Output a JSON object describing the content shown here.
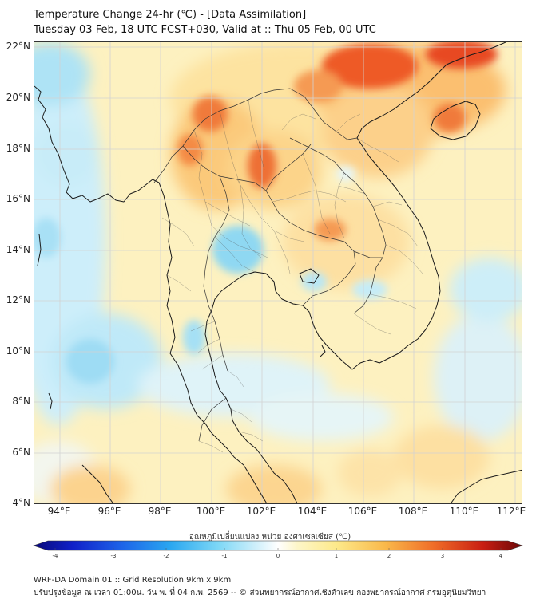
{
  "header": {
    "title": "Temperature Change 24-hr (℃) - [Data Assimilation]",
    "subtitle": "Tuesday 03 Feb, 18 UTC FCST+030, Valid at :: Thu 05 Feb, 00 UTC"
  },
  "map": {
    "lat_labels": [
      "22°N",
      "20°N",
      "18°N",
      "16°N",
      "14°N",
      "12°N",
      "10°N",
      "8°N",
      "6°N",
      "4°N"
    ],
    "lon_labels": [
      "94°E",
      "96°E",
      "98°E",
      "100°E",
      "102°E",
      "104°E",
      "106°E",
      "108°E",
      "110°E",
      "112°E"
    ],
    "lat_range": [
      4,
      22
    ],
    "lon_range": [
      93,
      112.3
    ]
  },
  "colorbar": {
    "title": "อุณหภูมิเปลี่ยนแปลง หน่วย องศาเซลเซียส (℃)",
    "ticks": [
      "-4",
      "-3",
      "-2",
      "-1",
      "0",
      "1",
      "2",
      "3",
      "4"
    ],
    "min": -4,
    "max": 4
  },
  "footer": {
    "line1": "WRF-DA Domain 01 :: Grid Resolution 9km x 9km",
    "line2": "ปรับปรุงข้อมูล ณ เวลา 01:00น. วัน พ. ที่ 04 ก.พ. 2569 -- © ส่วนพยากรณ์อากาศเชิงตัวเลข กองพยากรณ์อากาศ กรมอุตุนิยมวิทยา"
  },
  "colors": {
    "frame": "#333333",
    "coast": "#1a1a1a",
    "grid": "#cfcfcf"
  }
}
